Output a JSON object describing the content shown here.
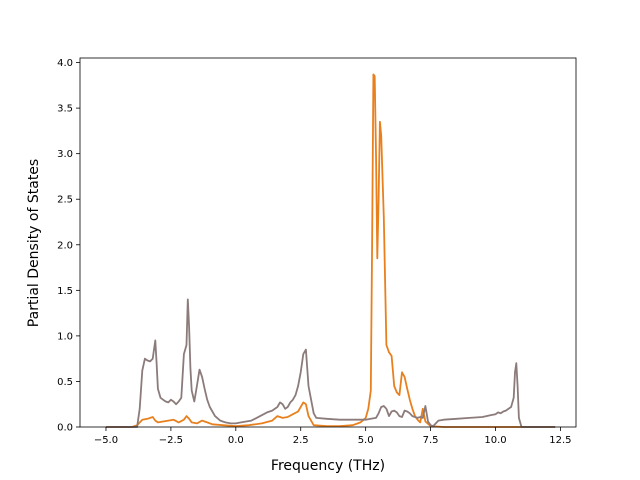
{
  "chart_data": {
    "type": "line",
    "title": "",
    "xlabel": "Frequency (THz)",
    "ylabel": "Partial Density of States",
    "xlim": [
      -6.0,
      13.1
    ],
    "ylim": [
      0.0,
      4.05
    ],
    "xticks": [
      -5.0,
      -2.5,
      0.0,
      2.5,
      5.0,
      7.5,
      10.0,
      12.5
    ],
    "xtick_labels": [
      "−5.0",
      "−2.5",
      "0.0",
      "2.5",
      "5.0",
      "7.5",
      "10.0",
      "12.5"
    ],
    "yticks": [
      0.0,
      0.5,
      1.0,
      1.5,
      2.0,
      2.5,
      3.0,
      3.5,
      4.0
    ],
    "ytick_labels": [
      "0.0",
      "0.5",
      "1.0",
      "1.5",
      "2.0",
      "2.5",
      "3.0",
      "3.5",
      "4.0"
    ],
    "grid": false,
    "legend": "none",
    "series": [
      {
        "color": "#e8801e",
        "x": [
          -5.0,
          -4.0,
          -3.8,
          -3.6,
          -3.4,
          -3.2,
          -3.1,
          -3.0,
          -2.8,
          -2.6,
          -2.4,
          -2.2,
          -2.0,
          -1.9,
          -1.8,
          -1.7,
          -1.5,
          -1.3,
          -1.1,
          -0.9,
          -0.5,
          0.0,
          0.5,
          1.0,
          1.4,
          1.6,
          1.8,
          2.0,
          2.2,
          2.4,
          2.6,
          2.7,
          2.8,
          3.0,
          3.5,
          4.0,
          4.5,
          4.8,
          5.0,
          5.1,
          5.2,
          5.25,
          5.3,
          5.35,
          5.4,
          5.45,
          5.5,
          5.55,
          5.6,
          5.7,
          5.8,
          5.9,
          6.0,
          6.1,
          6.2,
          6.3,
          6.4,
          6.5,
          6.6,
          6.7,
          6.8,
          6.9,
          7.0,
          7.1,
          7.2,
          7.3,
          7.5,
          8.0,
          9.0,
          10.0,
          10.8,
          11.0,
          12.3
        ],
        "y": [
          0.0,
          0.0,
          0.02,
          0.08,
          0.09,
          0.11,
          0.07,
          0.05,
          0.06,
          0.07,
          0.08,
          0.05,
          0.08,
          0.12,
          0.09,
          0.05,
          0.04,
          0.07,
          0.05,
          0.03,
          0.02,
          0.01,
          0.02,
          0.04,
          0.07,
          0.12,
          0.1,
          0.11,
          0.14,
          0.17,
          0.27,
          0.25,
          0.12,
          0.02,
          0.01,
          0.01,
          0.02,
          0.05,
          0.1,
          0.2,
          0.4,
          2.0,
          3.87,
          3.85,
          3.0,
          1.85,
          2.5,
          3.35,
          3.2,
          2.3,
          0.9,
          0.82,
          0.78,
          0.45,
          0.38,
          0.35,
          0.6,
          0.55,
          0.42,
          0.3,
          0.2,
          0.12,
          0.08,
          0.05,
          0.2,
          0.06,
          0.01,
          0.0,
          0.0,
          0.0,
          0.0,
          0.0,
          0.0
        ]
      },
      {
        "color": "#8c7b7b",
        "x": [
          -5.0,
          -3.8,
          -3.7,
          -3.6,
          -3.5,
          -3.4,
          -3.3,
          -3.2,
          -3.1,
          -3.05,
          -3.0,
          -2.9,
          -2.8,
          -2.7,
          -2.6,
          -2.5,
          -2.4,
          -2.3,
          -2.2,
          -2.1,
          -2.0,
          -1.9,
          -1.85,
          -1.8,
          -1.75,
          -1.7,
          -1.6,
          -1.5,
          -1.4,
          -1.3,
          -1.2,
          -1.1,
          -1.0,
          -0.8,
          -0.6,
          -0.4,
          -0.2,
          0.0,
          0.2,
          0.4,
          0.6,
          0.8,
          1.0,
          1.2,
          1.4,
          1.6,
          1.7,
          1.8,
          1.9,
          2.0,
          2.1,
          2.2,
          2.3,
          2.4,
          2.5,
          2.6,
          2.7,
          2.8,
          2.9,
          3.0,
          3.1,
          3.5,
          4.0,
          4.5,
          5.0,
          5.2,
          5.4,
          5.5,
          5.6,
          5.7,
          5.8,
          5.9,
          6.0,
          6.1,
          6.2,
          6.3,
          6.4,
          6.5,
          6.6,
          6.7,
          6.8,
          7.0,
          7.1,
          7.2,
          7.3,
          7.4,
          7.5,
          7.6,
          7.8,
          8.0,
          8.5,
          9.0,
          9.5,
          9.8,
          10.0,
          10.1,
          10.2,
          10.3,
          10.4,
          10.5,
          10.6,
          10.7,
          10.75,
          10.8,
          10.85,
          10.9,
          11.0,
          12.3
        ],
        "y": [
          0.0,
          0.0,
          0.2,
          0.62,
          0.75,
          0.73,
          0.72,
          0.75,
          0.95,
          0.7,
          0.42,
          0.32,
          0.3,
          0.28,
          0.27,
          0.3,
          0.28,
          0.25,
          0.28,
          0.32,
          0.8,
          0.9,
          1.4,
          1.1,
          0.65,
          0.4,
          0.28,
          0.45,
          0.63,
          0.55,
          0.42,
          0.3,
          0.22,
          0.12,
          0.07,
          0.05,
          0.04,
          0.04,
          0.05,
          0.06,
          0.07,
          0.1,
          0.13,
          0.16,
          0.18,
          0.22,
          0.27,
          0.25,
          0.2,
          0.22,
          0.27,
          0.3,
          0.35,
          0.45,
          0.6,
          0.8,
          0.85,
          0.45,
          0.3,
          0.15,
          0.1,
          0.09,
          0.08,
          0.08,
          0.08,
          0.09,
          0.1,
          0.15,
          0.22,
          0.23,
          0.2,
          0.12,
          0.17,
          0.18,
          0.16,
          0.12,
          0.11,
          0.18,
          0.17,
          0.15,
          0.12,
          0.1,
          0.11,
          0.1,
          0.23,
          0.06,
          0.02,
          0.01,
          0.07,
          0.08,
          0.09,
          0.1,
          0.11,
          0.13,
          0.14,
          0.16,
          0.15,
          0.17,
          0.18,
          0.2,
          0.22,
          0.32,
          0.6,
          0.7,
          0.45,
          0.1,
          0.0,
          0.0
        ]
      }
    ]
  }
}
